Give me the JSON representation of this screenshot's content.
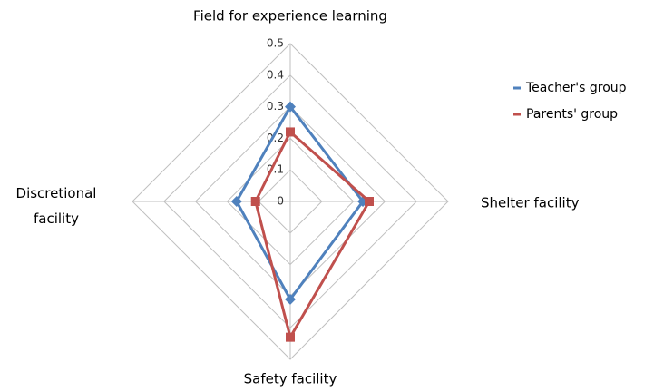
{
  "chart_data": {
    "type": "radar",
    "categories": [
      "Field for experience learning",
      "Shelter facility",
      "Safety facility",
      "Discretional facility"
    ],
    "rlim": [
      0,
      0.5
    ],
    "rticks": [
      0,
      0.1,
      0.2,
      0.3,
      0.4,
      0.5
    ],
    "grid": true,
    "legend": "right",
    "series": [
      {
        "name": "Teacher's group",
        "color": "#4f81bd",
        "marker": "diamond",
        "values": [
          0.3,
          0.23,
          0.31,
          0.17
        ]
      },
      {
        "name": "Parents' group",
        "color": "#c0504d",
        "marker": "square",
        "values": [
          0.22,
          0.25,
          0.43,
          0.11
        ]
      }
    ]
  }
}
